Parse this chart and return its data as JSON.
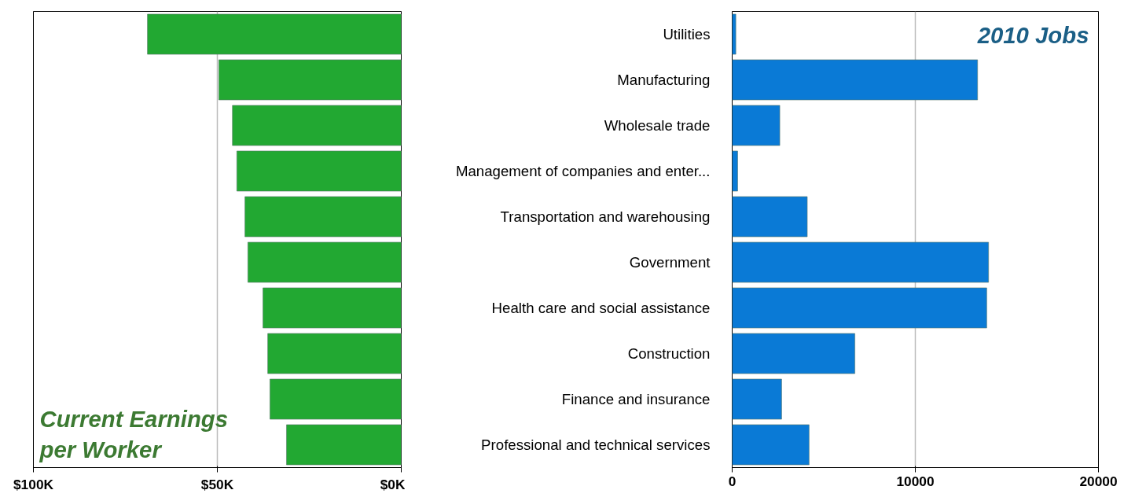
{
  "chart_data": [
    {
      "type": "bar",
      "orientation": "horizontal",
      "title": "Current Earnings\nper Worker",
      "categories": [
        null,
        null,
        null,
        null,
        null,
        null,
        null,
        null,
        null,
        null
      ],
      "values": [
        69,
        49.6,
        45.9,
        44.7,
        42.5,
        41.7,
        37.6,
        36.3,
        35.7,
        31.2
      ],
      "color": "#22a832",
      "xlim": [
        100,
        0
      ],
      "xticks": [
        {
          "value": 100,
          "label": "$100K"
        },
        {
          "value": 50,
          "label": "$50K"
        },
        {
          "value": 0,
          "label": "$0K"
        }
      ],
      "grid": "x",
      "tick_labels": "x"
    },
    {
      "type": "bar",
      "orientation": "horizontal",
      "title": "2010 Jobs",
      "categories": [
        "Utilities",
        "Manufacturing",
        "Wholesale trade",
        "Management of companies and enter...",
        "Transportation and warehousing",
        "Government",
        "Health care and social assistance",
        "Construction",
        "Finance and insurance",
        "Professional and technical services"
      ],
      "values": [
        200,
        13400,
        2600,
        300,
        4100,
        14000,
        13900,
        6700,
        2700,
        4200
      ],
      "color": "#0a7ad6",
      "xlim": [
        0,
        20000
      ],
      "xticks": [
        0,
        10000,
        20000
      ],
      "grid": "x"
    }
  ]
}
